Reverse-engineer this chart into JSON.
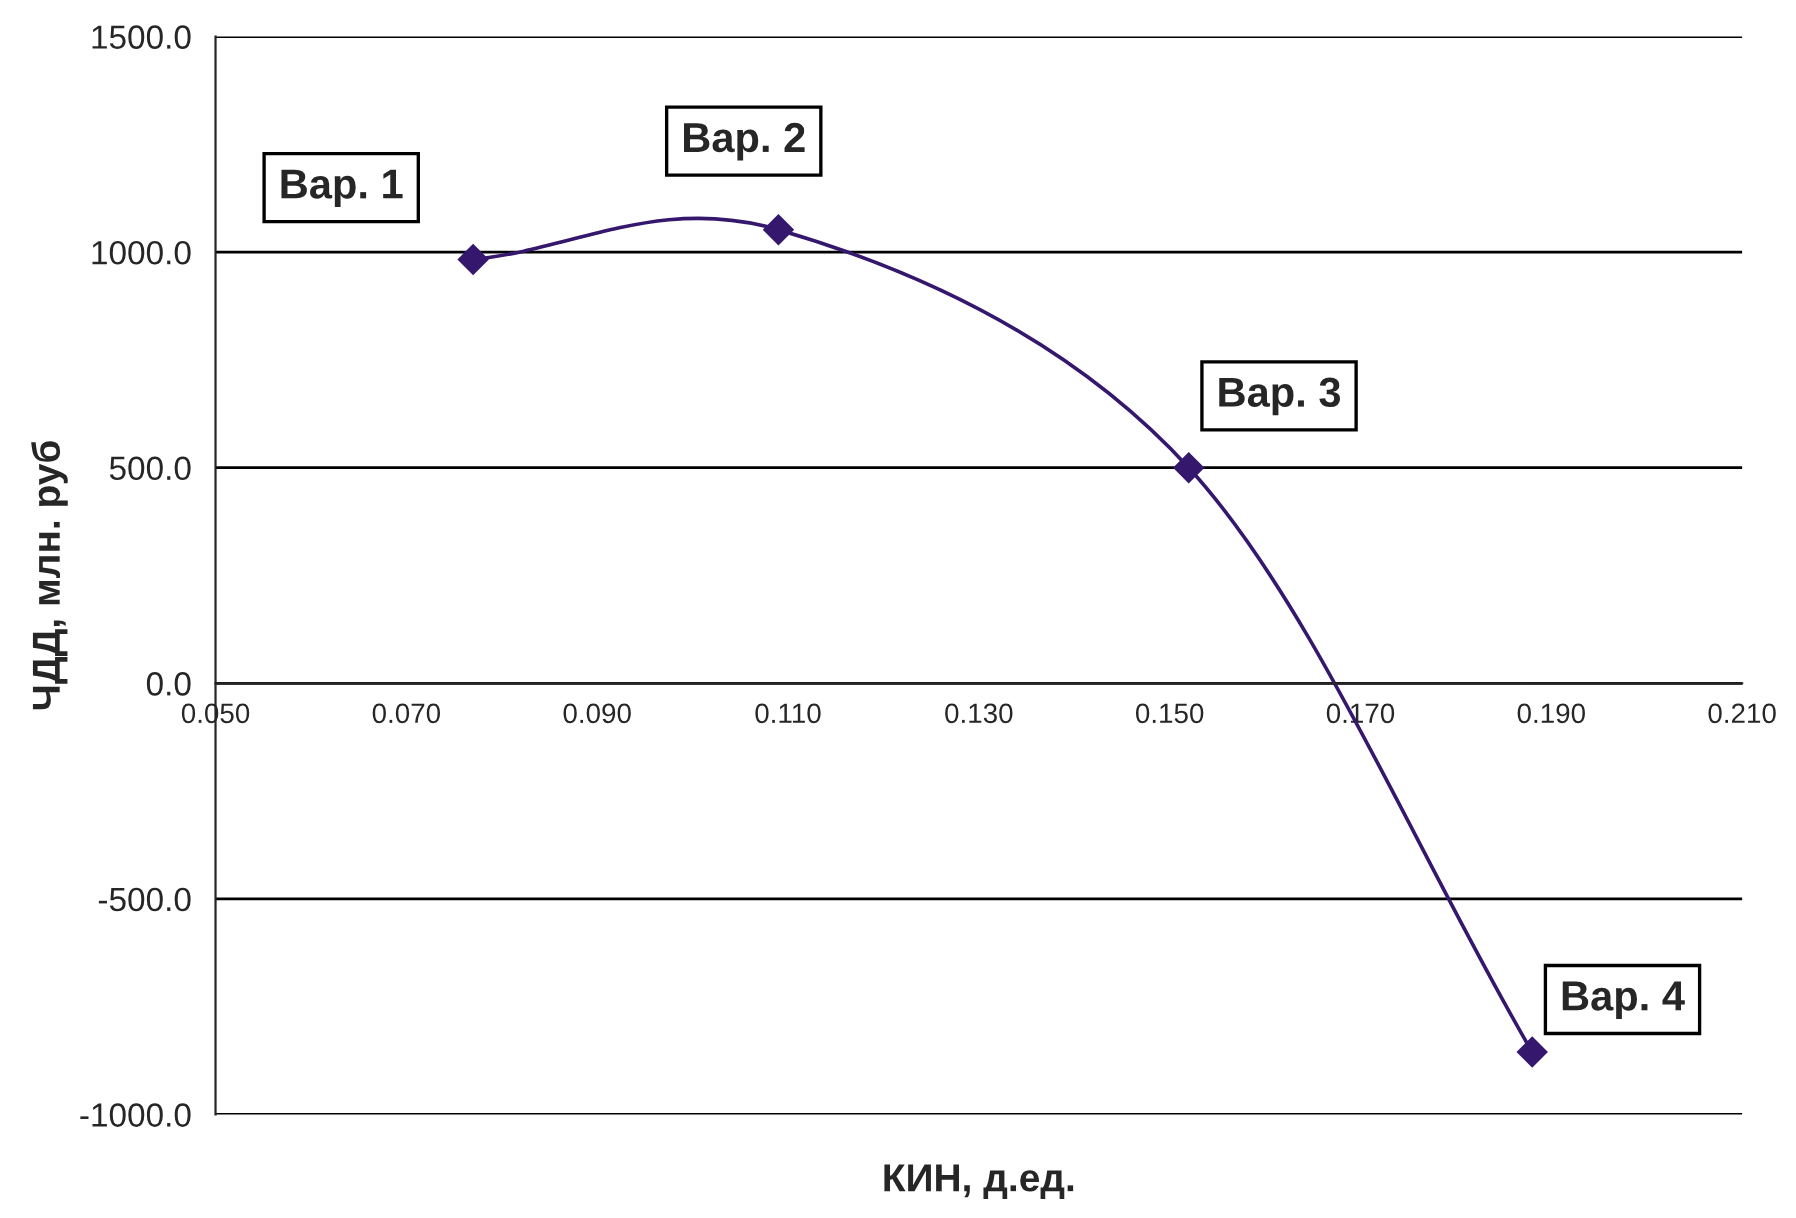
{
  "chart_data": {
    "type": "line",
    "xlabel": "КИН, д.ед.",
    "ylabel": "ЧДД, млн. руб",
    "x": [
      0.077,
      0.109,
      0.152,
      0.188
    ],
    "series": [
      {
        "color": "#35186e",
        "values": [
          983,
          1052,
          500,
          -855
        ]
      }
    ],
    "xlim": [
      0.05,
      0.21
    ],
    "xticks": [
      {
        "value": 0.05,
        "label": "0.050"
      },
      {
        "value": 0.07,
        "label": "0.070"
      },
      {
        "value": 0.09,
        "label": "0.090"
      },
      {
        "value": 0.11,
        "label": "0.110"
      },
      {
        "value": 0.13,
        "label": "0.130"
      },
      {
        "value": 0.15,
        "label": "0.150"
      },
      {
        "value": 0.17,
        "label": "0.170"
      },
      {
        "value": 0.19,
        "label": "0.190"
      },
      {
        "value": 0.21,
        "label": "0.210"
      }
    ],
    "ylim": [
      -1000,
      1500
    ],
    "yticks": [
      {
        "value": -1000,
        "label": "-1000.0"
      },
      {
        "value": -500,
        "label": "-500.0"
      },
      {
        "value": 0,
        "label": "0.0"
      },
      {
        "value": 500,
        "label": "500.0"
      },
      {
        "value": 1000,
        "label": "1000.0"
      },
      {
        "value": 1500,
        "label": "1500.0"
      }
    ],
    "grid": "y",
    "marker": "diamond",
    "line_style": "solid",
    "annotations": [
      {
        "text": "Вар. 1",
        "x": 0.077,
        "y": 983
      },
      {
        "text": "Вар. 2",
        "x": 0.109,
        "y": 1052
      },
      {
        "text": "Вар. 3",
        "x": 0.152,
        "y": 500
      },
      {
        "text": "Вар. 4",
        "x": 0.188,
        "y": -855
      }
    ]
  }
}
